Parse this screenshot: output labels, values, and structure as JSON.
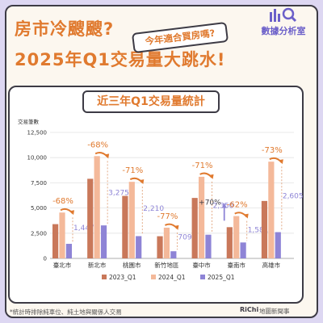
{
  "header": {
    "line1": "房市冷颼颼?",
    "line2": "2025年Q1交易量大跳水!",
    "sticker": "今年適合買房嗎?",
    "brand": "數據分析室",
    "brand_icon": "bar-chart-magnifier-icon"
  },
  "chart_title": "近三年Q1交易量統計",
  "footnote": "*統計時排除純車位、純土地與關係人交易",
  "credit": {
    "logo": "RiChi",
    "text": "地圖新聞事"
  },
  "colors": {
    "accent": "#e07a2f",
    "s2023": "#c9785a",
    "s2024": "#f4b99a",
    "s2025": "#8e84d6",
    "background": "#ddd7f2"
  },
  "chart_data": {
    "type": "bar",
    "ylabel": "交易筆數",
    "ylim": [
      0,
      12500
    ],
    "yticks": [
      "0",
      "2,500",
      "5,000",
      "7,500",
      "10,000",
      "12,500"
    ],
    "grid": true,
    "legend_position": "bottom",
    "categories": [
      "臺北市",
      "新北市",
      "桃園市",
      "新竹地區",
      "臺中市",
      "臺南市",
      "高雄市"
    ],
    "series": [
      {
        "name": "2023_Q1",
        "values": [
          3400,
          7900,
          6200,
          2200,
          6000,
          3100,
          5700
        ]
      },
      {
        "name": "2024_Q1",
        "values": [
          4550,
          10150,
          7600,
          3050,
          8100,
          4200,
          9600
        ]
      },
      {
        "name": "2025_Q1",
        "values": [
          1447,
          3275,
          2210,
          709,
          2350,
          1581,
          2605
        ]
      }
    ],
    "value_labels_2025": [
      "1,447",
      "3,275",
      "2,210",
      "709",
      "2,350",
      "1,581",
      "2,605"
    ],
    "change_labels": [
      "-68%",
      "-68%",
      "-71%",
      "-77%",
      "-71%",
      "-62%",
      "-73%"
    ],
    "extra_annotation": {
      "category": "臺南市",
      "text": "+70%"
    }
  }
}
